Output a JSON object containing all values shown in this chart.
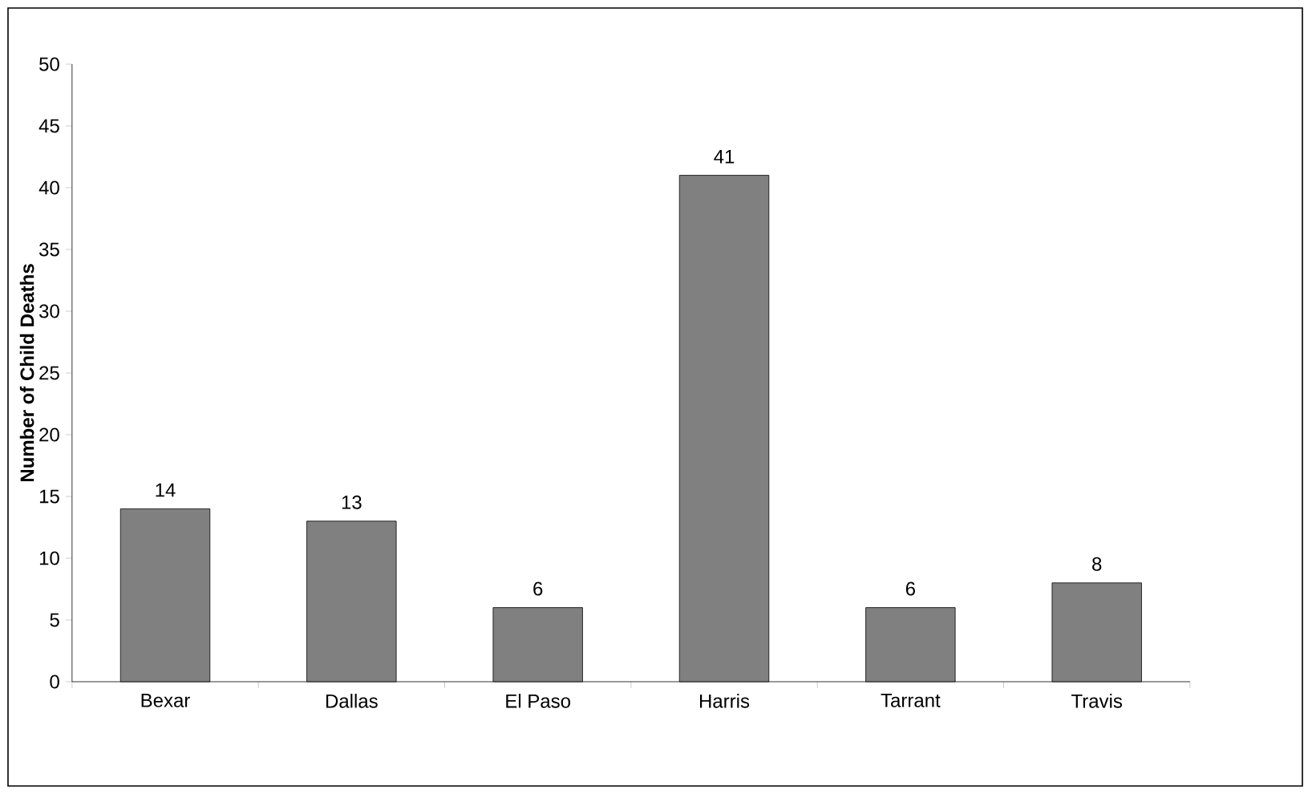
{
  "chart_data": {
    "type": "bar",
    "ylabel": "Number of Child Deaths",
    "categories": [
      "Bexar",
      "Dallas",
      "El Paso",
      "Harris",
      "Tarrant",
      "Travis"
    ],
    "values": [
      14,
      13,
      6,
      41,
      6,
      8
    ],
    "color": "#808080",
    "ylim": [
      0,
      50
    ],
    "yticks": [
      0,
      5,
      10,
      15,
      20,
      25,
      30,
      35,
      40,
      45,
      50
    ],
    "data_labels": true
  }
}
